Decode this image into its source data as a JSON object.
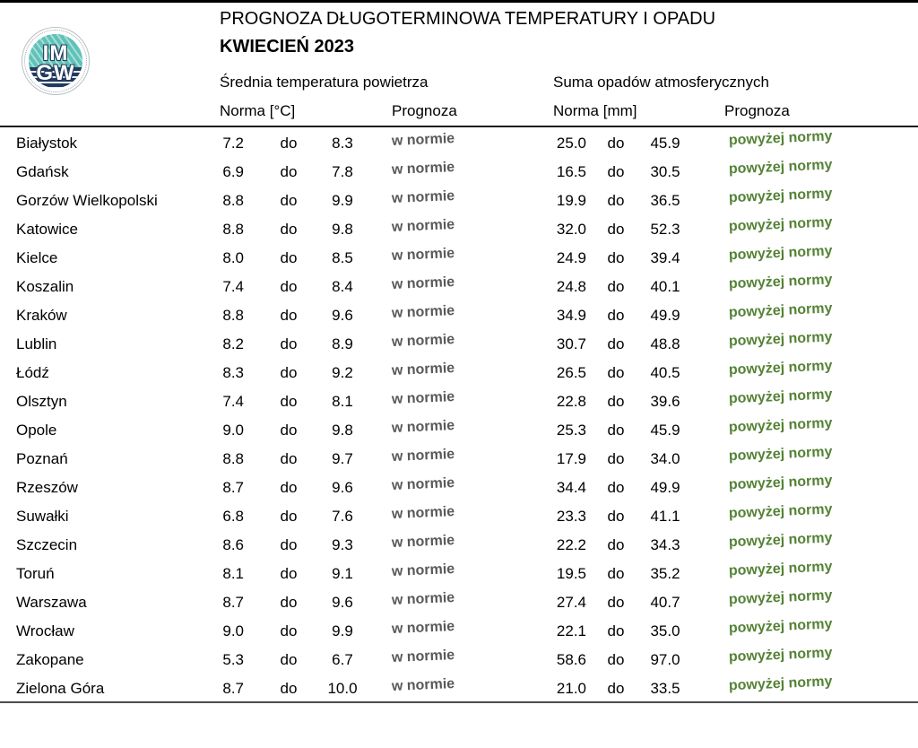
{
  "header": {
    "title": "PROGNOZA DŁUGOTERMINOWA TEMPERATURY I OPADU",
    "subtitle": "KWIECIEŃ 2023",
    "logo": {
      "line1": "IM",
      "line2": "GW"
    },
    "temp_group_label": "Średnia temperatura powietrza",
    "precip_group_label": "Suma opadów atmosferycznych",
    "temp_norm_label": "Norma [°C]",
    "temp_forecast_label": "Prognoza",
    "precip_norm_label": "Norma [mm]",
    "precip_forecast_label": "Prognoza",
    "range_word": "do"
  },
  "colors": {
    "forecast_in_norm": "#595959",
    "forecast_above_norm": "#548235",
    "logo_teal": "#5fc2b8",
    "logo_navy": "#233a5e"
  },
  "rows": [
    {
      "city": "Białystok",
      "t_lo": "7.2",
      "t_hi": "8.3",
      "t_prog": "w normie",
      "p_lo": "25.0",
      "p_hi": "45.9",
      "p_prog": "powyżej normy"
    },
    {
      "city": "Gdańsk",
      "t_lo": "6.9",
      "t_hi": "7.8",
      "t_prog": "w normie",
      "p_lo": "16.5",
      "p_hi": "30.5",
      "p_prog": "powyżej normy"
    },
    {
      "city": "Gorzów Wielkopolski",
      "t_lo": "8.8",
      "t_hi": "9.9",
      "t_prog": "w normie",
      "p_lo": "19.9",
      "p_hi": "36.5",
      "p_prog": "powyżej normy"
    },
    {
      "city": "Katowice",
      "t_lo": "8.8",
      "t_hi": "9.8",
      "t_prog": "w normie",
      "p_lo": "32.0",
      "p_hi": "52.3",
      "p_prog": "powyżej normy"
    },
    {
      "city": "Kielce",
      "t_lo": "8.0",
      "t_hi": "8.5",
      "t_prog": "w normie",
      "p_lo": "24.9",
      "p_hi": "39.4",
      "p_prog": "powyżej normy"
    },
    {
      "city": "Koszalin",
      "t_lo": "7.4",
      "t_hi": "8.4",
      "t_prog": "w normie",
      "p_lo": "24.8",
      "p_hi": "40.1",
      "p_prog": "powyżej normy"
    },
    {
      "city": "Kraków",
      "t_lo": "8.8",
      "t_hi": "9.6",
      "t_prog": "w normie",
      "p_lo": "34.9",
      "p_hi": "49.9",
      "p_prog": "powyżej normy"
    },
    {
      "city": "Lublin",
      "t_lo": "8.2",
      "t_hi": "8.9",
      "t_prog": "w normie",
      "p_lo": "30.7",
      "p_hi": "48.8",
      "p_prog": "powyżej normy"
    },
    {
      "city": "Łódź",
      "t_lo": "8.3",
      "t_hi": "9.2",
      "t_prog": "w normie",
      "p_lo": "26.5",
      "p_hi": "40.5",
      "p_prog": "powyżej normy"
    },
    {
      "city": "Olsztyn",
      "t_lo": "7.4",
      "t_hi": "8.1",
      "t_prog": "w normie",
      "p_lo": "22.8",
      "p_hi": "39.6",
      "p_prog": "powyżej normy"
    },
    {
      "city": "Opole",
      "t_lo": "9.0",
      "t_hi": "9.8",
      "t_prog": "w normie",
      "p_lo": "25.3",
      "p_hi": "45.9",
      "p_prog": "powyżej normy"
    },
    {
      "city": "Poznań",
      "t_lo": "8.8",
      "t_hi": "9.7",
      "t_prog": "w normie",
      "p_lo": "17.9",
      "p_hi": "34.0",
      "p_prog": "powyżej normy"
    },
    {
      "city": "Rzeszów",
      "t_lo": "8.7",
      "t_hi": "9.6",
      "t_prog": "w normie",
      "p_lo": "34.4",
      "p_hi": "49.9",
      "p_prog": "powyżej normy"
    },
    {
      "city": "Suwałki",
      "t_lo": "6.8",
      "t_hi": "7.6",
      "t_prog": "w normie",
      "p_lo": "23.3",
      "p_hi": "41.1",
      "p_prog": "powyżej normy"
    },
    {
      "city": "Szczecin",
      "t_lo": "8.6",
      "t_hi": "9.3",
      "t_prog": "w normie",
      "p_lo": "22.2",
      "p_hi": "34.3",
      "p_prog": "powyżej normy"
    },
    {
      "city": "Toruń",
      "t_lo": "8.1",
      "t_hi": "9.1",
      "t_prog": "w normie",
      "p_lo": "19.5",
      "p_hi": "35.2",
      "p_prog": "powyżej normy"
    },
    {
      "city": "Warszawa",
      "t_lo": "8.7",
      "t_hi": "9.6",
      "t_prog": "w normie",
      "p_lo": "27.4",
      "p_hi": "40.7",
      "p_prog": "powyżej normy"
    },
    {
      "city": "Wrocław",
      "t_lo": "9.0",
      "t_hi": "9.9",
      "t_prog": "w normie",
      "p_lo": "22.1",
      "p_hi": "35.0",
      "p_prog": "powyżej normy"
    },
    {
      "city": "Zakopane",
      "t_lo": "5.3",
      "t_hi": "6.7",
      "t_prog": "w normie",
      "p_lo": "58.6",
      "p_hi": "97.0",
      "p_prog": "powyżej normy"
    },
    {
      "city": "Zielona Góra",
      "t_lo": "8.7",
      "t_hi": "10.0",
      "t_prog": "w normie",
      "p_lo": "21.0",
      "p_hi": "33.5",
      "p_prog": "powyżej normy"
    }
  ]
}
